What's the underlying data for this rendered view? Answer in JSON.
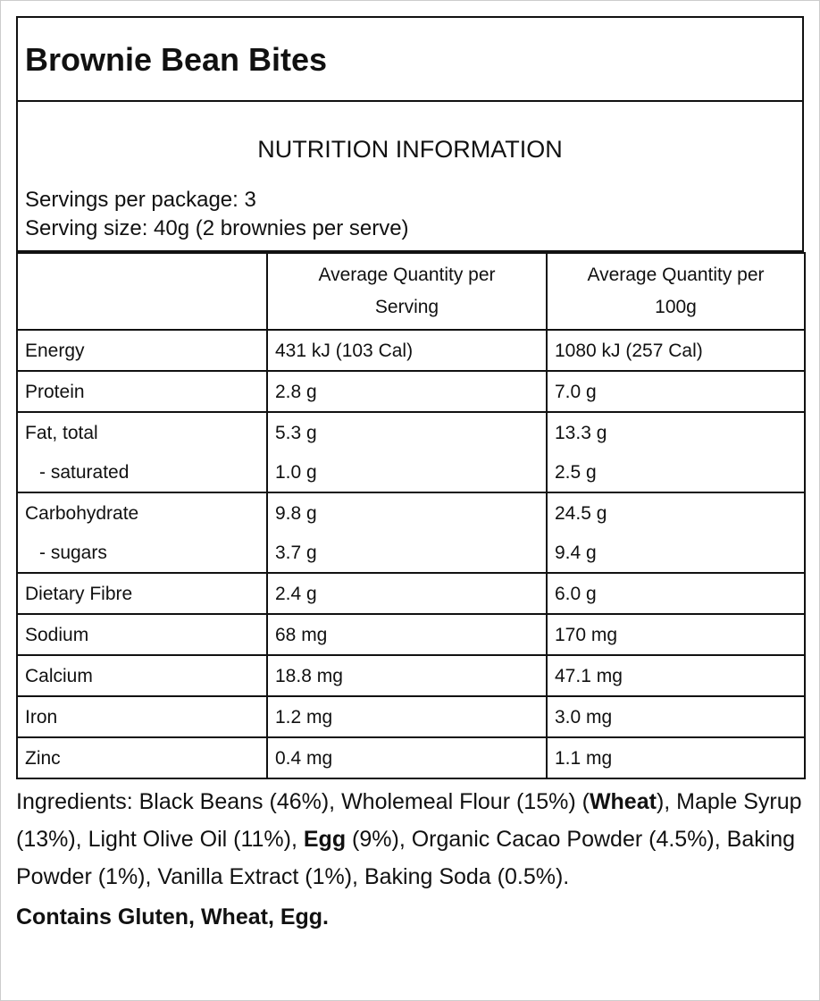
{
  "header": {
    "title": "Brownie Bean Bites"
  },
  "nutrition": {
    "heading": "NUTRITION INFORMATION",
    "servings_per_package": "Servings per package: 3",
    "serving_size": "Serving size: 40g (2 brownies per serve)"
  },
  "table": {
    "columns": [
      "Average Quantity per Serving",
      "Average Quantity per 100g"
    ],
    "groups": [
      {
        "rows": [
          [
            "Energy",
            "431 kJ (103 Cal)",
            "1080 kJ (257 Cal)"
          ]
        ]
      },
      {
        "rows": [
          [
            "Protein",
            "2.8 g",
            "7.0 g"
          ]
        ]
      },
      {
        "rows": [
          [
            "Fat, total",
            "5.3 g",
            "13.3 g"
          ],
          [
            "- saturated",
            "1.0 g",
            "2.5 g"
          ]
        ]
      },
      {
        "rows": [
          [
            "Carbohydrate",
            "9.8 g",
            "24.5 g"
          ],
          [
            "- sugars",
            "3.7 g",
            "9.4 g"
          ]
        ]
      },
      {
        "rows": [
          [
            "Dietary Fibre",
            "2.4 g",
            "6.0 g"
          ]
        ]
      },
      {
        "rows": [
          [
            "Sodium",
            "68 mg",
            "170 mg"
          ]
        ]
      },
      {
        "rows": [
          [
            "Calcium",
            "18.8 mg",
            "47.1 mg"
          ]
        ]
      },
      {
        "rows": [
          [
            "Iron",
            "1.2 mg",
            "3.0 mg"
          ]
        ]
      },
      {
        "rows": [
          [
            "Zinc",
            "0.4 mg",
            "1.1 mg"
          ]
        ]
      }
    ]
  },
  "ingredients": {
    "segments": [
      {
        "text": "Ingredients: Black Beans (46%), Wholemeal Flour (15%) (",
        "bold": false
      },
      {
        "text": "Wheat",
        "bold": true
      },
      {
        "text": "), Maple Syrup (13%), Light Olive Oil (11%), ",
        "bold": false
      },
      {
        "text": "Egg",
        "bold": true
      },
      {
        "text": " (9%), Organic Cacao Powder (4.5%), Baking Powder (1%), Vanilla Extract (1%), Baking Soda (0.5%).",
        "bold": false
      }
    ]
  },
  "allergens": "Contains Gluten, Wheat, Egg."
}
